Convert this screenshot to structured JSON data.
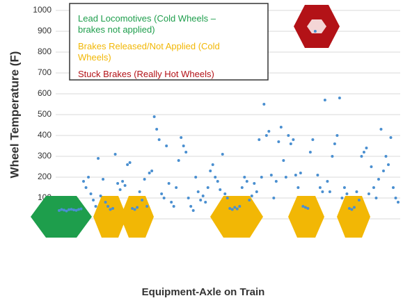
{
  "chart_data": {
    "type": "scatter",
    "y_label": "Wheel Temperature (F)",
    "x_label": "Equipment-Axle on Train",
    "ylim": [
      0,
      1000
    ],
    "yticks": [
      0,
      100,
      200,
      300,
      400,
      500,
      600,
      700,
      800,
      900,
      1000
    ],
    "grid": true,
    "color": "#4a8fd0",
    "legend": [
      {
        "text": "Lead Locomotives (Cold Wheels – brakes not applied)",
        "color": "#1e9e4c"
      },
      {
        "text": "Brakes Released/Not Applied (Cold Wheels)",
        "color": "#f2b705"
      },
      {
        "text": "Stuck Brakes (Really Hot Wheels)",
        "color": "#b31217"
      }
    ],
    "values": [
      40,
      45,
      42,
      38,
      44,
      46,
      43,
      41,
      45,
      48,
      180,
      150,
      200,
      120,
      90,
      60,
      290,
      110,
      190,
      80,
      60,
      45,
      50,
      310,
      170,
      140,
      180,
      160,
      260,
      270,
      50,
      45,
      55,
      130,
      90,
      190,
      60,
      220,
      230,
      490,
      430,
      380,
      120,
      100,
      350,
      170,
      80,
      60,
      150,
      280,
      390,
      350,
      320,
      100,
      60,
      40,
      200,
      130,
      90,
      110,
      80,
      150,
      230,
      260,
      200,
      180,
      140,
      310,
      120,
      100,
      50,
      45,
      55,
      48,
      60,
      150,
      200,
      180,
      90,
      110,
      170,
      130,
      380,
      200,
      550,
      400,
      420,
      210,
      100,
      180,
      370,
      440,
      280,
      200,
      400,
      360,
      380,
      210,
      150,
      220,
      60,
      55,
      50,
      320,
      380,
      900,
      210,
      150,
      130,
      570,
      180,
      130,
      300,
      360,
      400,
      580,
      100,
      150,
      120,
      50,
      45,
      55,
      130,
      90,
      300,
      320,
      340,
      120,
      250,
      150,
      100,
      190,
      430,
      230,
      300,
      260,
      390,
      150,
      100,
      80
    ]
  }
}
